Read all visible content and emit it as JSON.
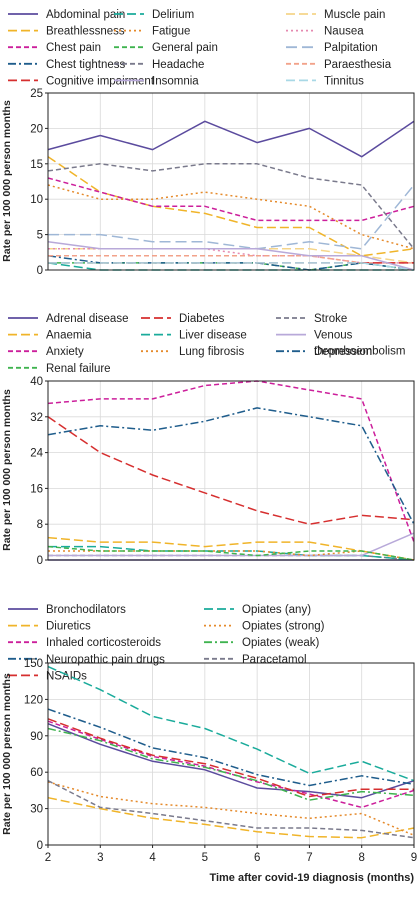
{
  "chart_data": [
    {
      "type": "line",
      "ylabel": "Rate per 100 000 person months",
      "ylim": [
        0,
        25
      ],
      "yticks": [
        0,
        5,
        10,
        15,
        20,
        25
      ],
      "grid": true,
      "legend_placement": "top",
      "x": [
        2,
        3,
        4,
        5,
        6,
        7,
        8,
        9
      ],
      "series": [
        {
          "name": "Abdominal pain",
          "color": "#5b4b9e",
          "dash": "solid",
          "values": [
            17,
            19,
            17,
            21,
            18,
            20,
            16,
            21
          ]
        },
        {
          "name": "Delirium",
          "color": "#1aab9b",
          "dash": "long",
          "values": [
            1,
            0,
            0,
            0,
            0,
            0,
            0,
            0
          ]
        },
        {
          "name": "Muscle pain",
          "color": "#f5d58a",
          "dash": "long",
          "values": [
            3,
            3,
            3,
            3,
            3,
            3,
            2,
            1
          ]
        },
        {
          "name": "Breathlessness",
          "color": "#f0b429",
          "dash": "long",
          "values": [
            16,
            11,
            9,
            8,
            6,
            6,
            2,
            3
          ]
        },
        {
          "name": "Fatigue",
          "color": "#e58a2b",
          "dash": "dot",
          "values": [
            12,
            10,
            10,
            11,
            10,
            9,
            5,
            3
          ]
        },
        {
          "name": "Nausea",
          "color": "#e58ab0",
          "dash": "dot",
          "values": [
            3,
            3,
            3,
            3,
            2,
            2,
            1,
            1
          ]
        },
        {
          "name": "Chest pain",
          "color": "#cc1f9b",
          "dash": "dash",
          "values": [
            13,
            11,
            9,
            9,
            7,
            7,
            7,
            9
          ]
        },
        {
          "name": "General pain",
          "color": "#3fb34f",
          "dash": "dash",
          "values": [
            1,
            1,
            1,
            1,
            1,
            0,
            1,
            0
          ]
        },
        {
          "name": "Palpitation",
          "color": "#9fb7d6",
          "dash": "longdash",
          "values": [
            5,
            5,
            4,
            4,
            3,
            4,
            3,
            12
          ]
        },
        {
          "name": "Chest tightness",
          "color": "#1f5d8c",
          "dash": "dashdot",
          "values": [
            2,
            1,
            1,
            1,
            1,
            0,
            1,
            0
          ]
        },
        {
          "name": "Headache",
          "color": "#7a7a8c",
          "dash": "dash",
          "values": [
            14,
            15,
            14,
            15,
            15,
            13,
            12,
            3
          ]
        },
        {
          "name": "Paraesthesia",
          "color": "#f2a28a",
          "dash": "dash",
          "values": [
            2,
            2,
            2,
            2,
            2,
            2,
            1,
            1
          ]
        },
        {
          "name": "Cognitive impairment",
          "color": "#d62f2f",
          "dash": "long",
          "values": [
            1,
            1,
            1,
            1,
            1,
            1,
            1,
            1
          ]
        },
        {
          "name": "Insomnia",
          "color": "#b8a9d9",
          "dash": "solid",
          "values": [
            4,
            3,
            3,
            3,
            3,
            2,
            2,
            0
          ]
        },
        {
          "name": "Tinnitus",
          "color": "#a8d8e6",
          "dash": "long",
          "values": [
            1,
            1,
            1,
            1,
            1,
            1,
            1,
            0
          ]
        }
      ]
    },
    {
      "type": "line",
      "ylabel": "Rate per 100 000 person months",
      "ylim": [
        0,
        40
      ],
      "yticks": [
        0,
        8,
        16,
        24,
        32,
        40
      ],
      "grid": true,
      "legend_placement": "top",
      "x": [
        2,
        3,
        4,
        5,
        6,
        7,
        8,
        9
      ],
      "series": [
        {
          "name": "Adrenal disease",
          "color": "#5b4b9e",
          "dash": "solid",
          "values": [
            0,
            0,
            0,
            0,
            0,
            0,
            0,
            0
          ]
        },
        {
          "name": "Diabetes",
          "color": "#d62f2f",
          "dash": "long",
          "values": [
            32,
            24,
            19,
            15,
            11,
            8,
            10,
            9
          ]
        },
        {
          "name": "Stroke",
          "color": "#7a7a8c",
          "dash": "dash",
          "values": [
            1,
            1,
            1,
            1,
            1,
            1,
            1,
            0
          ]
        },
        {
          "name": "Anaemia",
          "color": "#f0b429",
          "dash": "long",
          "values": [
            5,
            4,
            4,
            3,
            4,
            4,
            2,
            0
          ]
        },
        {
          "name": "Liver disease",
          "color": "#1aab9b",
          "dash": "long",
          "values": [
            3,
            3,
            2,
            2,
            2,
            1,
            1,
            0
          ]
        },
        {
          "name": "Venous thromboembolism",
          "color": "#b8a9d9",
          "dash": "solid",
          "values": [
            1,
            1,
            1,
            1,
            1,
            1,
            1,
            6
          ]
        },
        {
          "name": "Anxiety",
          "color": "#cc1f9b",
          "dash": "dash",
          "values": [
            35,
            36,
            36,
            39,
            40,
            38,
            36,
            4
          ]
        },
        {
          "name": "Lung fibrosis",
          "color": "#e58a2b",
          "dash": "dot",
          "values": [
            2,
            2,
            2,
            2,
            2,
            1,
            2,
            0
          ]
        },
        {
          "name": "Depression",
          "color": "#1f5d8c",
          "dash": "dashdot",
          "values": [
            28,
            30,
            29,
            31,
            34,
            32,
            30,
            8
          ]
        },
        {
          "name": "Renal failure",
          "color": "#3fb34f",
          "dash": "dash",
          "values": [
            3,
            2,
            2,
            2,
            1,
            2,
            2,
            0
          ]
        }
      ]
    },
    {
      "type": "line",
      "ylabel": "Rate per 100 000 person months",
      "xlabel": "Time after covid-19 diagnosis (months)",
      "ylim": [
        0,
        150
      ],
      "yticks": [
        0,
        30,
        60,
        90,
        120,
        150
      ],
      "xticks": [
        2,
        3,
        4,
        5,
        6,
        7,
        8,
        9
      ],
      "grid": true,
      "legend_placement": "top",
      "x": [
        2,
        3,
        4,
        5,
        6,
        7,
        8,
        9
      ],
      "series": [
        {
          "name": "Bronchodilators",
          "color": "#5b4b9e",
          "dash": "solid",
          "values": [
            100,
            83,
            69,
            62,
            47,
            44,
            39,
            53
          ]
        },
        {
          "name": "Opiates (any)",
          "color": "#1aab9b",
          "dash": "long",
          "values": [
            147,
            128,
            106,
            96,
            79,
            59,
            69,
            53
          ]
        },
        {
          "name": "Diuretics",
          "color": "#f0b429",
          "dash": "long",
          "values": [
            39,
            30,
            22,
            17,
            11,
            7,
            6,
            14
          ]
        },
        {
          "name": "Opiates (strong)",
          "color": "#e58a2b",
          "dash": "dot",
          "values": [
            52,
            40,
            34,
            31,
            26,
            22,
            26,
            8
          ]
        },
        {
          "name": "Inhaled corticosteroids",
          "color": "#cc1f9b",
          "dash": "dash",
          "values": [
            102,
            87,
            73,
            65,
            52,
            42,
            31,
            45
          ]
        },
        {
          "name": "Opiates (weak)",
          "color": "#3fb34f",
          "dash": "dashdot",
          "values": [
            96,
            86,
            71,
            64,
            53,
            37,
            44,
            41
          ]
        },
        {
          "name": "Neuropathic pain drugs",
          "color": "#1f5d8c",
          "dash": "dashdot",
          "values": [
            112,
            97,
            80,
            72,
            58,
            49,
            57,
            50
          ]
        },
        {
          "name": "Paracetamol",
          "color": "#7a7a8c",
          "dash": "dash",
          "values": [
            53,
            31,
            26,
            20,
            14,
            14,
            12,
            6
          ]
        },
        {
          "name": "NSAIDs",
          "color": "#d62f2f",
          "dash": "long",
          "values": [
            104,
            88,
            74,
            67,
            55,
            40,
            46,
            46
          ]
        }
      ]
    }
  ]
}
